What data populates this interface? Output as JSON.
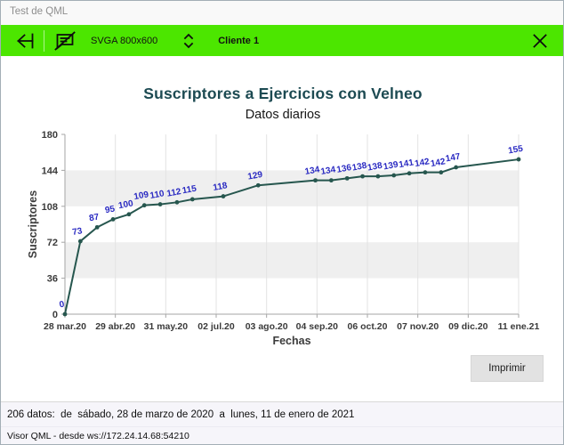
{
  "window": {
    "title": "Test de QML"
  },
  "toolbar": {
    "background": "#4ce600",
    "resolution_label": "SVGA 800x600",
    "client_label": "Cliente 1",
    "icons": {
      "back": "back-arrow-to-bar",
      "chat_off": "message-bubble-crossed-out",
      "stepper": "up-down-chevrons",
      "close": "close-x"
    }
  },
  "chart_data": {
    "type": "line",
    "title": "Suscriptores a Ejercicios con Velneo",
    "subtitle": "Datos diarios",
    "xlabel": "Fechas",
    "ylabel": "Suscriptores",
    "ylim": [
      0,
      180
    ],
    "yticks": [
      0,
      36,
      72,
      108,
      144,
      180
    ],
    "xticks": [
      "28 mar.20",
      "29 abr.20",
      "31 may.20",
      "02 jul.20",
      "03 ago.20",
      "04 sep.20",
      "06 oct.20",
      "07 nov.20",
      "09 dic.20",
      "11 ene.21"
    ],
    "legend_position": "none",
    "grid": "vertical lines + alternating horizontal bands",
    "points": [
      {
        "x": 0.0,
        "y": 0
      },
      {
        "x": 0.034,
        "y": 73
      },
      {
        "x": 0.071,
        "y": 87
      },
      {
        "x": 0.106,
        "y": 95
      },
      {
        "x": 0.141,
        "y": 100
      },
      {
        "x": 0.175,
        "y": 109
      },
      {
        "x": 0.21,
        "y": 110
      },
      {
        "x": 0.247,
        "y": 112
      },
      {
        "x": 0.281,
        "y": 115
      },
      {
        "x": 0.349,
        "y": 118
      },
      {
        "x": 0.426,
        "y": 129
      },
      {
        "x": 0.552,
        "y": 134
      },
      {
        "x": 0.587,
        "y": 134
      },
      {
        "x": 0.622,
        "y": 136
      },
      {
        "x": 0.656,
        "y": 138
      },
      {
        "x": 0.69,
        "y": 138
      },
      {
        "x": 0.725,
        "y": 139
      },
      {
        "x": 0.759,
        "y": 141
      },
      {
        "x": 0.794,
        "y": 142
      },
      {
        "x": 0.829,
        "y": 142
      },
      {
        "x": 0.862,
        "y": 147
      },
      {
        "x": 1.0,
        "y": 155
      }
    ],
    "colors": {
      "line": "#26564e",
      "point_label": "#2a2ac2",
      "band": "#efefef",
      "grid": "#e3e3e3",
      "axis": "#a6a6a6",
      "tick_text": "#3b3b3b",
      "title_text": "#1c4a52"
    }
  },
  "actions": {
    "print_label": "Imprimir"
  },
  "status": {
    "summary": "206 datos:  de  sábado, 28 de marzo de 2020  a  lunes, 11 de enero de 2021"
  },
  "footer": {
    "connection": "Visor QML - desde ws://172.24.14.68:54210"
  }
}
